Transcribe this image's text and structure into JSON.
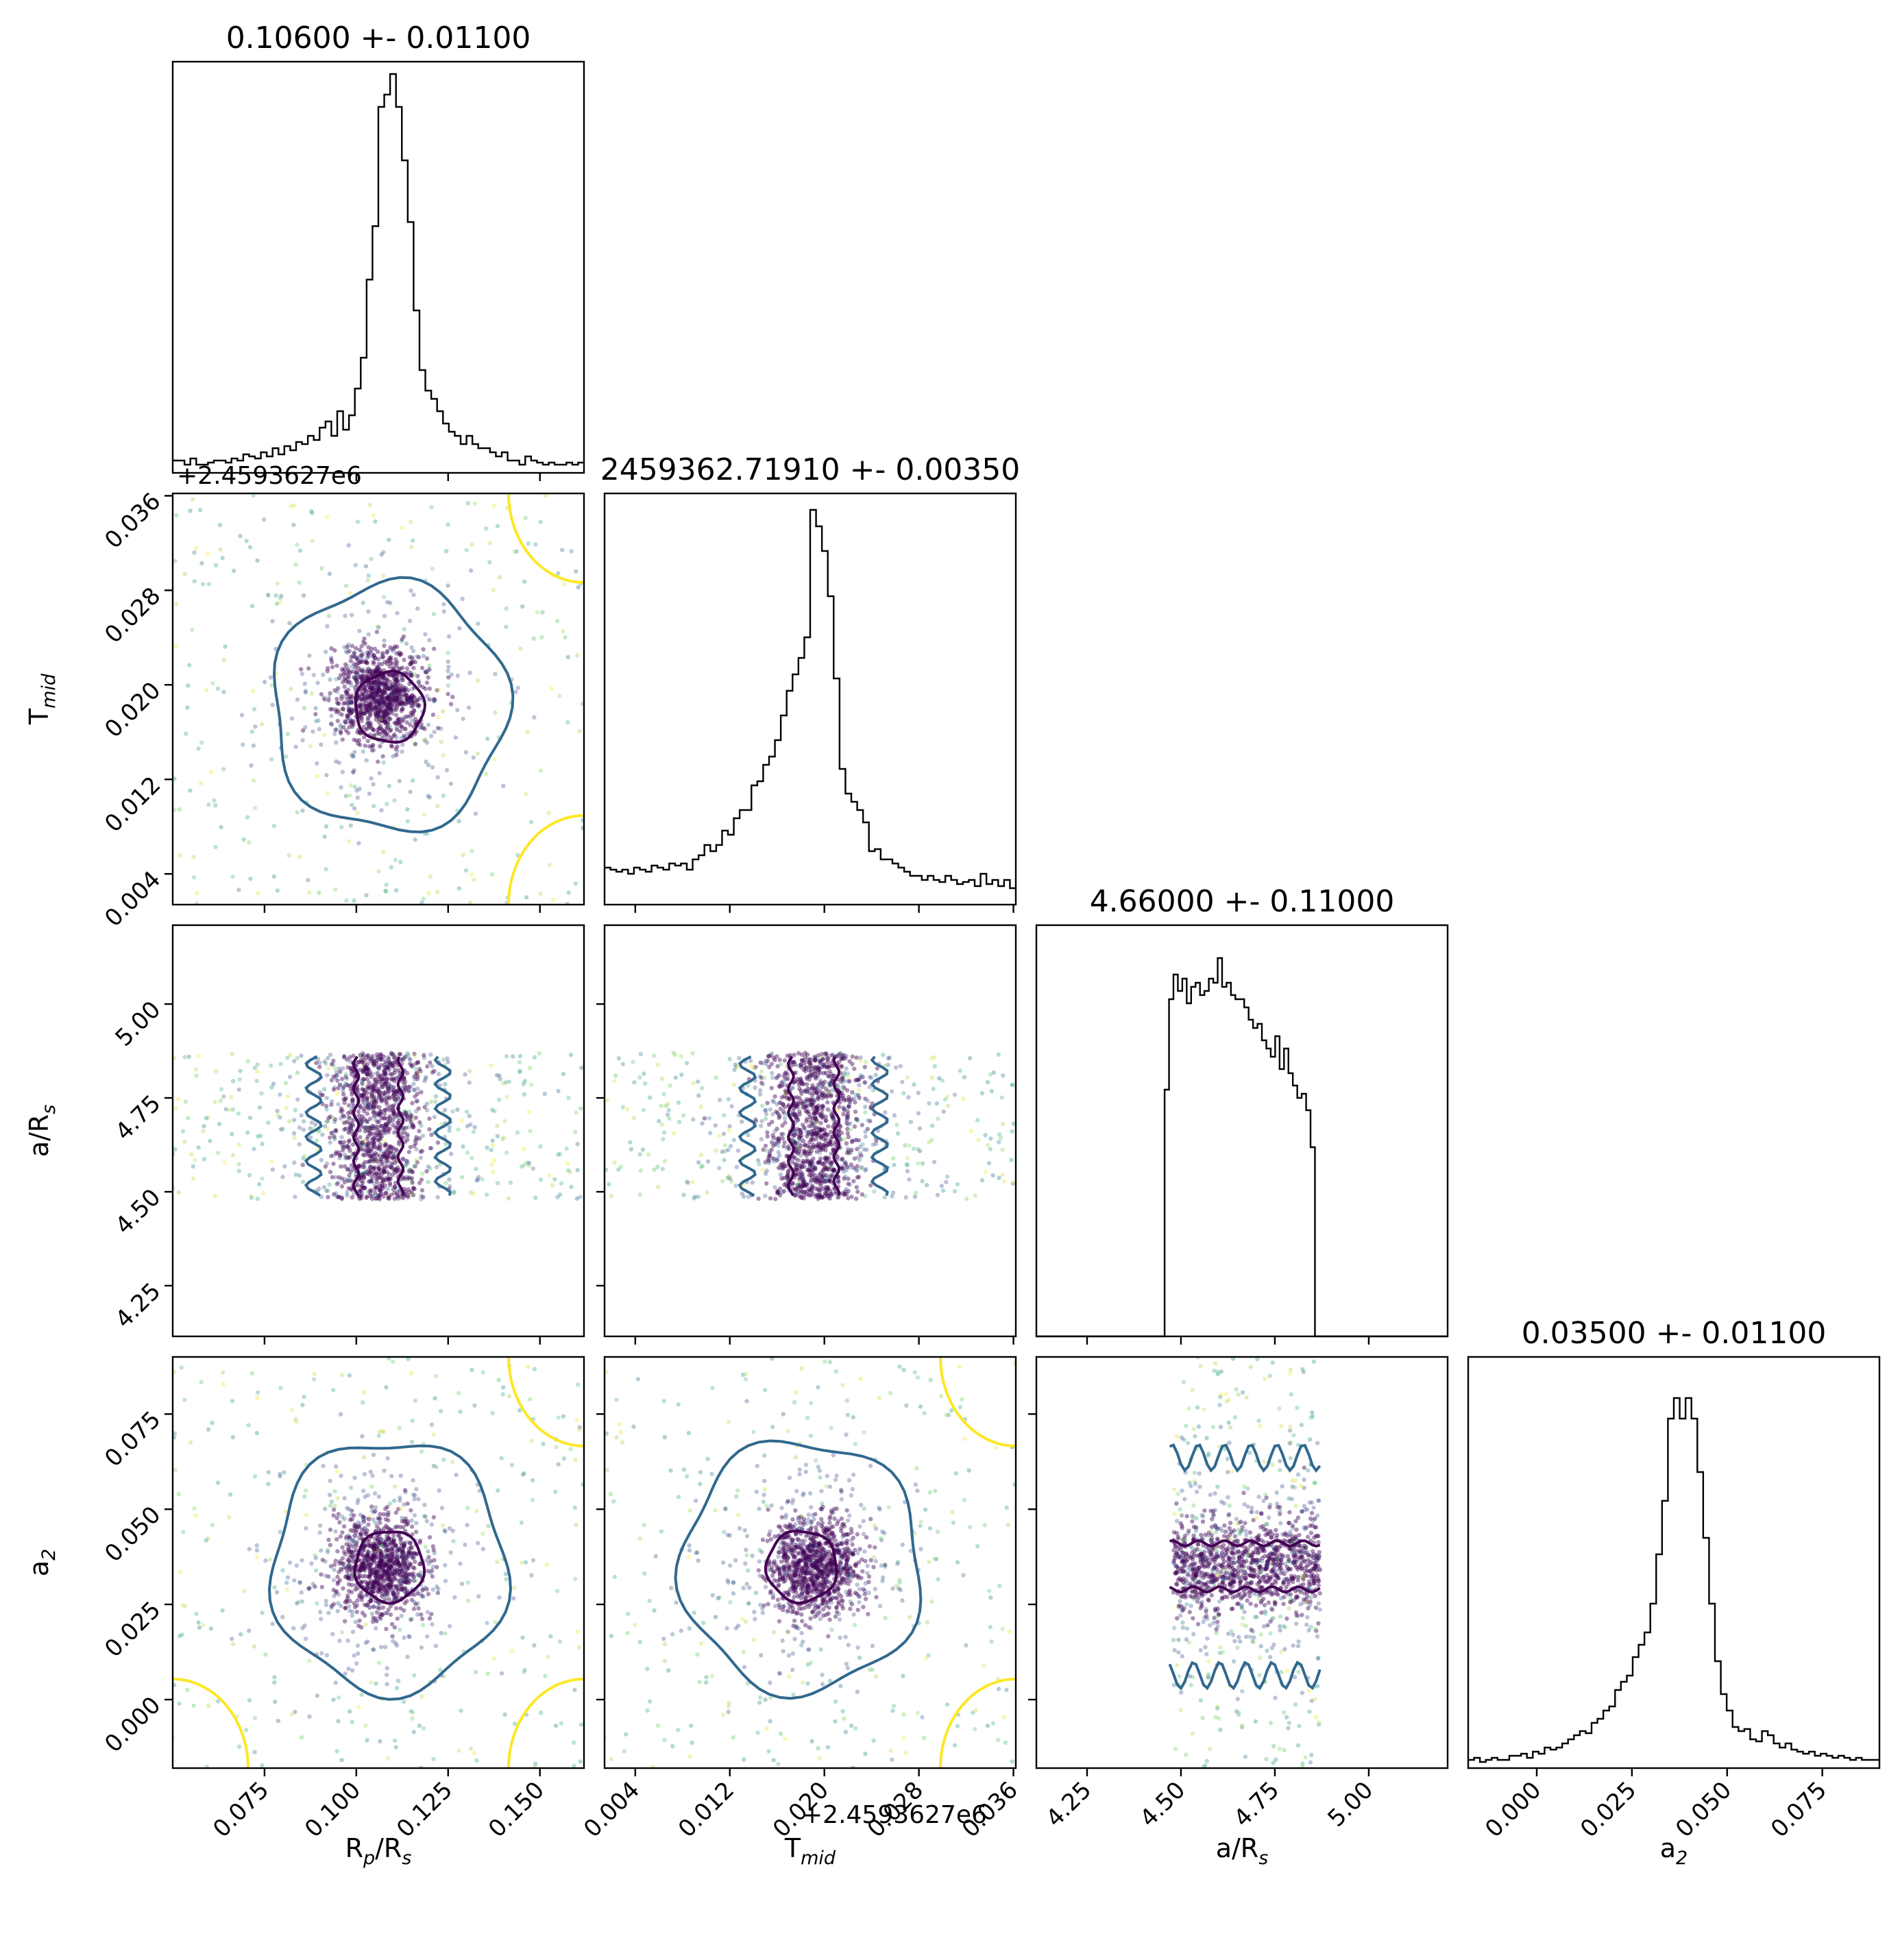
{
  "chart_data": {
    "type": "corner",
    "parameters": [
      {
        "key": "rp",
        "label_main": "R",
        "label_sub1": "p",
        "label_mid": "/R",
        "label_sub2": "s",
        "range": [
          0.05,
          0.162
        ],
        "ticks": [
          0.075,
          0.1,
          0.125,
          0.15
        ],
        "tick_labels": [
          "0.075",
          "0.100",
          "0.125",
          "0.150"
        ],
        "title": "0.10600 +- 0.01100",
        "mean": 0.106,
        "std": 0.011,
        "offset_text": ""
      },
      {
        "key": "tmid",
        "label_main": "T",
        "label_sub1": "mid",
        "label_mid": "",
        "label_sub2": "",
        "range": [
          0.0014,
          0.0362
        ],
        "ticks": [
          0.004,
          0.012,
          0.02,
          0.028,
          0.036
        ],
        "tick_labels": [
          "0.004",
          "0.012",
          "0.020",
          "0.028",
          "0.036"
        ],
        "title": "2459362.71910 +- 0.00350",
        "mean": 0.0191,
        "std": 0.0035,
        "offset_text": "+2.4593627e6"
      },
      {
        "key": "ars",
        "label_main": "a/R",
        "label_sub1": "s",
        "label_mid": "",
        "label_sub2": "",
        "range": [
          4.115,
          5.21
        ],
        "ticks": [
          4.25,
          4.5,
          4.75,
          5.0
        ],
        "tick_labels": [
          "4.25",
          "4.50",
          "4.75",
          "5.00"
        ],
        "title": "4.66000 +- 0.11000",
        "mean": 4.66,
        "std": 0.11,
        "offset_text": ""
      },
      {
        "key": "a2",
        "label_main": "a",
        "label_sub1": "2",
        "label_mid": "",
        "label_sub2": "",
        "range": [
          -0.018,
          0.09
        ],
        "ticks": [
          0.0,
          0.025,
          0.05,
          0.075
        ],
        "tick_labels": [
          "0.000",
          "0.025",
          "0.050",
          "0.075"
        ],
        "title": "0.03500 +- 0.01100",
        "mean": 0.035,
        "std": 0.011,
        "offset_text": ""
      }
    ],
    "histograms": {
      "rp": [
        0.03,
        0.03,
        0.02,
        0.035,
        0.02,
        0.02,
        0.025,
        0.03,
        0.03,
        0.025,
        0.035,
        0.03,
        0.045,
        0.04,
        0.035,
        0.05,
        0.04,
        0.06,
        0.045,
        0.065,
        0.055,
        0.075,
        0.07,
        0.09,
        0.08,
        0.11,
        0.125,
        0.09,
        0.15,
        0.105,
        0.14,
        0.205,
        0.28,
        0.47,
        0.6,
        0.89,
        0.92,
        0.97,
        0.89,
        0.76,
        0.61,
        0.395,
        0.25,
        0.2,
        0.18,
        0.15,
        0.12,
        0.1,
        0.09,
        0.07,
        0.09,
        0.07,
        0.06,
        0.06,
        0.05,
        0.04,
        0.05,
        0.03,
        0.03,
        0.02,
        0.04,
        0.03,
        0.025,
        0.02,
        0.025,
        0.02,
        0.02,
        0.025,
        0.02,
        0.025
      ],
      "tmid": [
        0.09,
        0.085,
        0.08,
        0.085,
        0.075,
        0.09,
        0.085,
        0.08,
        0.095,
        0.09,
        0.085,
        0.1,
        0.095,
        0.1,
        0.085,
        0.11,
        0.12,
        0.145,
        0.13,
        0.145,
        0.18,
        0.17,
        0.21,
        0.23,
        0.23,
        0.29,
        0.3,
        0.34,
        0.36,
        0.4,
        0.46,
        0.52,
        0.56,
        0.6,
        0.65,
        0.96,
        0.92,
        0.86,
        0.75,
        0.55,
        0.33,
        0.27,
        0.25,
        0.23,
        0.2,
        0.13,
        0.135,
        0.11,
        0.11,
        0.1,
        0.09,
        0.08,
        0.07,
        0.07,
        0.06,
        0.07,
        0.06,
        0.055,
        0.07,
        0.06,
        0.05,
        0.055,
        0.06,
        0.045,
        0.075,
        0.05,
        0.06,
        0.045,
        0.06,
        0.04
      ],
      "ars": [
        0,
        0,
        0,
        0,
        0,
        0,
        0,
        0,
        0,
        0,
        0,
        0,
        0,
        0,
        0,
        0,
        0,
        0,
        0,
        0,
        0,
        0,
        0,
        0,
        0,
        0,
        0,
        0,
        0,
        0.6,
        0.82,
        0.88,
        0.84,
        0.87,
        0.81,
        0.85,
        0.86,
        0.83,
        0.84,
        0.87,
        0.86,
        0.92,
        0.85,
        0.86,
        0.83,
        0.82,
        0.82,
        0.8,
        0.77,
        0.75,
        0.76,
        0.72,
        0.7,
        0.68,
        0.73,
        0.65,
        0.7,
        0.64,
        0.61,
        0.58,
        0.59,
        0.55,
        0.46,
        0,
        0,
        0,
        0,
        0,
        0,
        0,
        0,
        0,
        0,
        0,
        0,
        0,
        0,
        0,
        0,
        0,
        0,
        0,
        0,
        0,
        0,
        0,
        0,
        0,
        0,
        0,
        0,
        0,
        0
      ],
      "a2": [
        0.02,
        0.025,
        0.015,
        0.02,
        0.025,
        0.02,
        0.02,
        0.03,
        0.03,
        0.035,
        0.025,
        0.04,
        0.035,
        0.05,
        0.045,
        0.05,
        0.06,
        0.07,
        0.08,
        0.09,
        0.085,
        0.11,
        0.12,
        0.14,
        0.15,
        0.19,
        0.21,
        0.225,
        0.27,
        0.3,
        0.33,
        0.4,
        0.52,
        0.65,
        0.85,
        0.9,
        0.85,
        0.9,
        0.85,
        0.72,
        0.56,
        0.4,
        0.26,
        0.18,
        0.14,
        0.1,
        0.09,
        0.095,
        0.07,
        0.065,
        0.09,
        0.08,
        0.06,
        0.05,
        0.06,
        0.045,
        0.04,
        0.035,
        0.04,
        0.03,
        0.035,
        0.03,
        0.025,
        0.03,
        0.025,
        0.02,
        0.025,
        0.02,
        0.02,
        0.02
      ]
    },
    "contour_colors": [
      "#440154",
      "#31688e",
      "#fde725"
    ],
    "colormap": "viridis",
    "scatter_point_count_per_panel": 4000
  }
}
